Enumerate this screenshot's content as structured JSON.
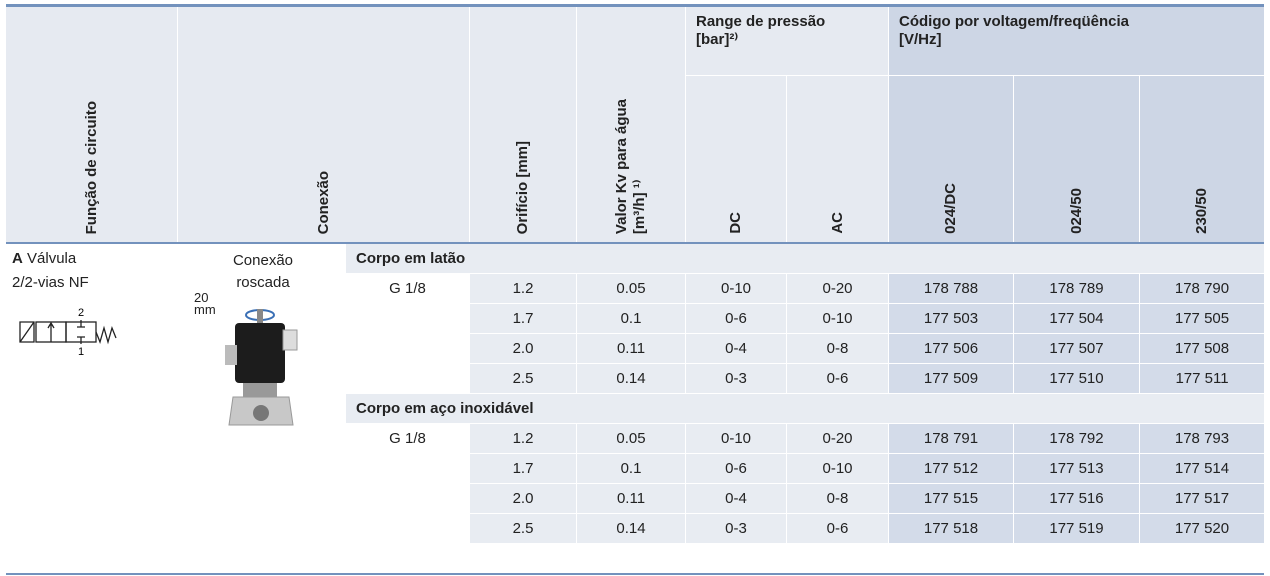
{
  "header": {
    "circuit_function": "Função de circuito",
    "connection": "Conexão",
    "orifice": "Orifício [mm]",
    "kv": [
      "Valor Kv para água",
      "[m³/h] ¹⁾"
    ],
    "pressure_range": [
      "Range de pressão",
      "[bar]²⁾"
    ],
    "pressure_columns": [
      "DC",
      "AC"
    ],
    "code": [
      "Código por voltagem/freqüência",
      "[V/Hz]"
    ],
    "code_columns": [
      "024/DC",
      "024/50",
      "230/50"
    ]
  },
  "function": {
    "letter": "A",
    "name": "Válvula",
    "subtitle": "2/2-vias NF",
    "port_labels": [
      "2",
      "1"
    ]
  },
  "connection": {
    "lines": [
      "Conexão",
      "roscada"
    ],
    "image_label": [
      "20",
      "mm"
    ]
  },
  "sections": [
    {
      "title": "Corpo em latão",
      "thread": "G 1/8",
      "rows": [
        [
          "1.2",
          "0.05",
          "0-10",
          "0-20",
          "178 788",
          "178 789",
          "178 790"
        ],
        [
          "1.7",
          "0.1",
          "0-6",
          "0-10",
          "177 503",
          "177 504",
          "177 505"
        ],
        [
          "2.0",
          "0.11",
          "0-4",
          "0-8",
          "177 506",
          "177 507",
          "177 508"
        ],
        [
          "2.5",
          "0.14",
          "0-3",
          "0-6",
          "177 509",
          "177 510",
          "177 511"
        ]
      ]
    },
    {
      "title": "Corpo em aço inoxidável",
      "thread": "G 1/8",
      "rows": [
        [
          "1.2",
          "0.05",
          "0-10",
          "0-20",
          "178 791",
          "178 792",
          "178 793"
        ],
        [
          "1.7",
          "0.1",
          "0-6",
          "0-10",
          "177 512",
          "177 513",
          "177 514"
        ],
        [
          "2.0",
          "0.11",
          "0-4",
          "0-8",
          "177 515",
          "177 516",
          "177 517"
        ],
        [
          "2.5",
          "0.14",
          "0-3",
          "0-6",
          "177 518",
          "177 519",
          "177 520"
        ]
      ]
    }
  ]
}
